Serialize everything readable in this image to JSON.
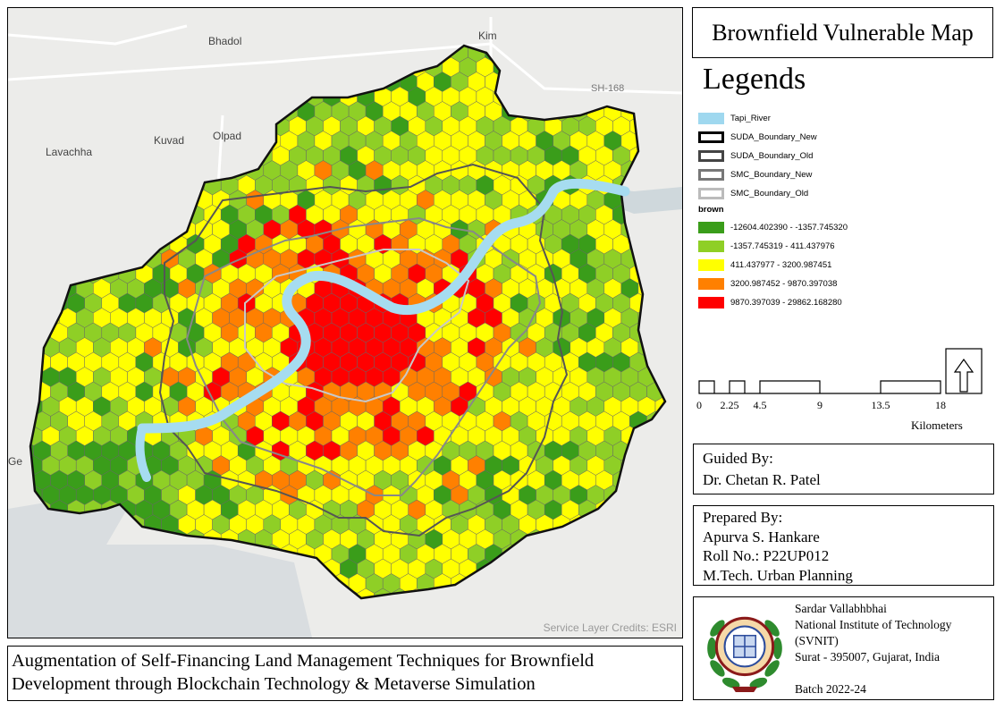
{
  "map": {
    "places": [
      {
        "name": "Bhadol"
      },
      {
        "name": "Kim"
      },
      {
        "name": "Olpad"
      },
      {
        "name": "Kuvad"
      },
      {
        "name": "Lavachha"
      },
      {
        "name": "Ge"
      }
    ],
    "roads": [
      {
        "name": "SH-168"
      }
    ],
    "credits": "Service Layer Credits: ESRI",
    "class_colors": [
      "#3a9d1a",
      "#8fcf26",
      "#ffff00",
      "#ff8000",
      "#ff0000"
    ],
    "river_color": "#a6dcf0"
  },
  "title": "Brownfield Vulnerable Map",
  "legend": {
    "heading": "Legends",
    "layers": [
      {
        "label": "Tapi_River",
        "swatch": "fill",
        "color": "#9fd8ef"
      },
      {
        "label": "SUDA_Boundary_New",
        "swatch": "outline",
        "color": "#000000"
      },
      {
        "label": "SUDA_Boundary_Old",
        "swatch": "outline",
        "color": "#444444"
      },
      {
        "label": "SMC_Boundary_New",
        "swatch": "outline",
        "color": "#777777"
      },
      {
        "label": "SMC_Boundary_Old",
        "swatch": "outline",
        "color": "#bbbbbb"
      }
    ],
    "group_label": "brown",
    "classes": [
      {
        "label": "-12604.402390 - -1357.745320",
        "color": "#3a9d1a"
      },
      {
        "label": "-1357.745319 - 411.437976",
        "color": "#8fcf26"
      },
      {
        "label": "411.437977 - 3200.987451",
        "color": "#ffff00"
      },
      {
        "label": "3200.987452 - 9870.397038",
        "color": "#ff8000"
      },
      {
        "label": "9870.397039 - 29862.168280",
        "color": "#ff0000"
      }
    ]
  },
  "scale": {
    "ticks": [
      "0",
      "2.25",
      "4.5",
      "9",
      "13.5",
      "18"
    ],
    "unit": "Kilometers",
    "north_arrow": "north-arrow"
  },
  "guided": {
    "heading": "Guided By:",
    "name": "Dr. Chetan R. Patel"
  },
  "prepared": {
    "heading": "Prepared By:",
    "name": "Apurva S. Hankare",
    "roll": "Roll No.: P22UP012",
    "program": "M.Tech. Urban Planning"
  },
  "institute": {
    "line1": "Sardar Vallabhbhai",
    "line2": "National Institute of Technology",
    "line3": "(SVNIT)",
    "line4": "Surat - 395007, Gujarat, India",
    "batch": "Batch 2022-24"
  },
  "project": {
    "line1": "Augmentation of Self-Financing Land Management Techniques for Brownfield",
    "line2": "Development through Blockchain Technology & Metaverse Simulation"
  }
}
